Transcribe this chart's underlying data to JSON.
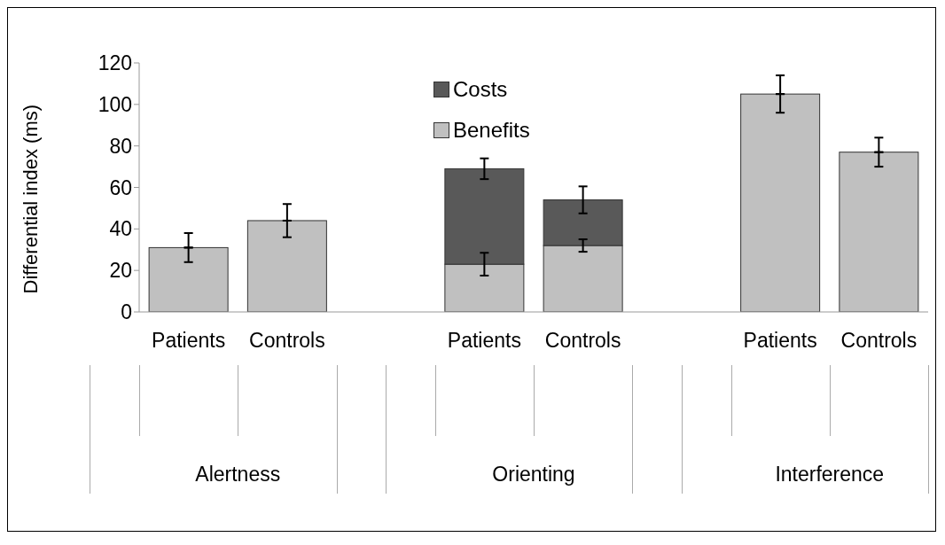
{
  "chart_data": {
    "type": "bar",
    "stacked": true,
    "ylabel": "Differential index (ms)",
    "categories": [
      "Patients",
      "Controls",
      null,
      "Patients",
      "Controls",
      null,
      "Patients",
      "Controls"
    ],
    "series": [
      {
        "name": "Benefits",
        "color": "#c0c0c0",
        "values": [
          31,
          44,
          null,
          23,
          32,
          null,
          105,
          77
        ],
        "errors": [
          7,
          8,
          null,
          5.5,
          3,
          null,
          9,
          7
        ]
      },
      {
        "name": "Costs",
        "color": "#595959",
        "values": [
          null,
          null,
          null,
          46,
          22,
          null,
          null,
          null
        ],
        "errors": [
          null,
          null,
          null,
          5,
          6.5,
          null,
          null,
          null
        ]
      }
    ],
    "annotations": [
      "Alertness",
      "Orienting",
      "Interference"
    ],
    "ylim": [
      0,
      120
    ],
    "yticks": [
      0,
      20,
      40,
      60,
      80,
      100,
      120
    ],
    "legend": "top"
  }
}
